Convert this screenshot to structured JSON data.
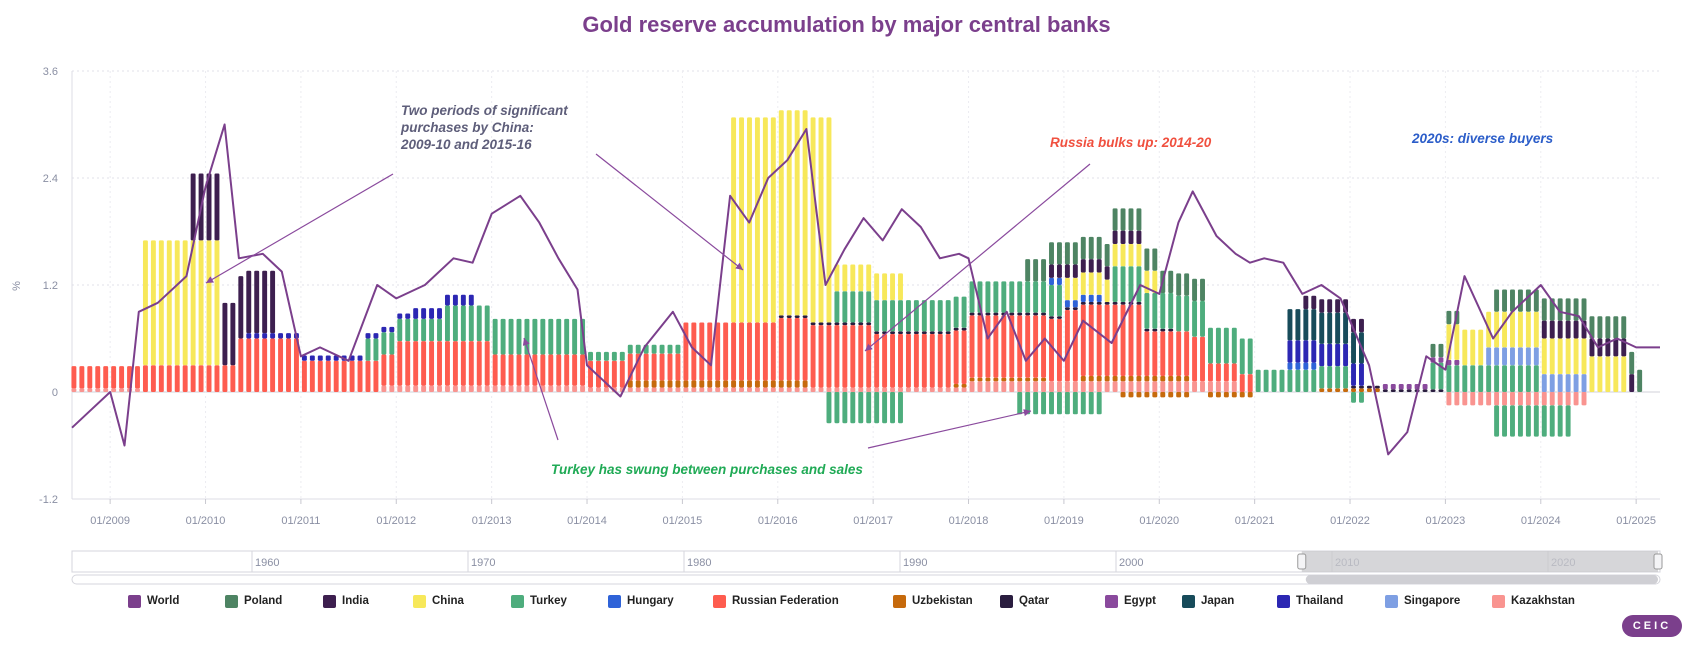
{
  "chart_data": {
    "type": "bar",
    "title": "Gold reserve accumulation by major central banks",
    "ylabel": "%",
    "xlabel": "",
    "ylim": [
      -1.2,
      3.6
    ],
    "yticks": [
      "3.6",
      "2.4",
      "1.2",
      "0",
      "-1.2"
    ],
    "ytick_values": [
      3.6,
      2.4,
      1.2,
      0,
      -1.2
    ],
    "xlim": [
      2008.6,
      2025.25
    ],
    "xticks": [
      {
        "label": "01/2009",
        "value": 2009
      },
      {
        "label": "01/2010",
        "value": 2010
      },
      {
        "label": "01/2011",
        "value": 2011
      },
      {
        "label": "01/2012",
        "value": 2012
      },
      {
        "label": "01/2013",
        "value": 2013
      },
      {
        "label": "01/2014",
        "value": 2014
      },
      {
        "label": "01/2015",
        "value": 2015
      },
      {
        "label": "01/2016",
        "value": 2016
      },
      {
        "label": "01/2017",
        "value": 2017
      },
      {
        "label": "01/2018",
        "value": 2018
      },
      {
        "label": "01/2019",
        "value": 2019
      },
      {
        "label": "01/2020",
        "value": 2020
      },
      {
        "label": "01/2021",
        "value": 2021
      },
      {
        "label": "01/2022",
        "value": 2022
      },
      {
        "label": "01/2023",
        "value": 2023
      },
      {
        "label": "01/2024",
        "value": 2024
      },
      {
        "label": "01/2025",
        "value": 2025
      }
    ],
    "stack_order": [
      "Kazakhstan",
      "Uzbekistan",
      "Russian Federation",
      "Qatar",
      "Turkey",
      "Hungary",
      "Singapore",
      "Thailand",
      "Japan",
      "Egypt",
      "China",
      "India",
      "Poland"
    ],
    "series": [
      {
        "name": "World",
        "type": "line",
        "color": "#7b3f8c",
        "points": [
          [
            2008.6,
            -0.4
          ],
          [
            2008.8,
            -0.2
          ],
          [
            2009.0,
            0.0
          ],
          [
            2009.15,
            -0.6
          ],
          [
            2009.3,
            0.9
          ],
          [
            2009.5,
            1.0
          ],
          [
            2009.8,
            1.3
          ],
          [
            2010.0,
            2.3
          ],
          [
            2010.2,
            3.0
          ],
          [
            2010.35,
            1.5
          ],
          [
            2010.6,
            1.55
          ],
          [
            2010.8,
            1.35
          ],
          [
            2011.0,
            0.4
          ],
          [
            2011.2,
            0.5
          ],
          [
            2011.5,
            0.35
          ],
          [
            2011.8,
            1.2
          ],
          [
            2012.0,
            1.05
          ],
          [
            2012.3,
            1.2
          ],
          [
            2012.6,
            1.5
          ],
          [
            2012.8,
            1.45
          ],
          [
            2013.0,
            2.0
          ],
          [
            2013.3,
            2.2
          ],
          [
            2013.5,
            1.9
          ],
          [
            2013.7,
            1.5
          ],
          [
            2013.9,
            1.15
          ],
          [
            2014.0,
            0.3
          ],
          [
            2014.2,
            0.1
          ],
          [
            2014.35,
            -0.05
          ],
          [
            2014.6,
            0.5
          ],
          [
            2014.9,
            0.9
          ],
          [
            2015.1,
            0.5
          ],
          [
            2015.3,
            0.3
          ],
          [
            2015.5,
            2.2
          ],
          [
            2015.7,
            1.9
          ],
          [
            2015.9,
            2.4
          ],
          [
            2016.1,
            2.6
          ],
          [
            2016.3,
            2.95
          ],
          [
            2016.5,
            1.2
          ],
          [
            2016.7,
            1.6
          ],
          [
            2016.9,
            1.95
          ],
          [
            2017.1,
            1.7
          ],
          [
            2017.3,
            2.05
          ],
          [
            2017.5,
            1.85
          ],
          [
            2017.7,
            1.5
          ],
          [
            2017.9,
            1.55
          ],
          [
            2018.0,
            1.5
          ],
          [
            2018.2,
            0.6
          ],
          [
            2018.4,
            0.9
          ],
          [
            2018.6,
            0.35
          ],
          [
            2018.8,
            0.6
          ],
          [
            2019.0,
            0.35
          ],
          [
            2019.2,
            0.8
          ],
          [
            2019.5,
            0.55
          ],
          [
            2019.8,
            1.2
          ],
          [
            2020.0,
            1.1
          ],
          [
            2020.2,
            1.9
          ],
          [
            2020.35,
            2.25
          ],
          [
            2020.6,
            1.75
          ],
          [
            2020.8,
            1.55
          ],
          [
            2020.95,
            1.45
          ],
          [
            2021.1,
            1.5
          ],
          [
            2021.3,
            1.45
          ],
          [
            2021.5,
            1.1
          ],
          [
            2021.7,
            1.2
          ],
          [
            2021.9,
            1.05
          ],
          [
            2022.0,
            0.8
          ],
          [
            2022.2,
            0.3
          ],
          [
            2022.4,
            -0.7
          ],
          [
            2022.6,
            -0.45
          ],
          [
            2022.8,
            0.4
          ],
          [
            2023.0,
            0.25
          ],
          [
            2023.2,
            1.3
          ],
          [
            2023.5,
            0.6
          ],
          [
            2023.7,
            0.9
          ],
          [
            2024.0,
            1.2
          ],
          [
            2024.2,
            0.9
          ],
          [
            2024.4,
            0.85
          ],
          [
            2024.6,
            0.5
          ],
          [
            2024.8,
            0.6
          ],
          [
            2025.0,
            0.5
          ],
          [
            2025.25,
            0.5
          ]
        ]
      },
      {
        "name": "Poland",
        "color": "#4e8463",
        "segments": [
          [
            2018.6,
            2020.5,
            0.25
          ],
          [
            2022.8,
            2023.2,
            0.15
          ],
          [
            2023.5,
            2025.1,
            0.25
          ]
        ]
      },
      {
        "name": "India",
        "color": "#3d1f4f",
        "segments": [
          [
            2009.8,
            2010.15,
            0.75
          ],
          [
            2010.2,
            2010.75,
            0.7
          ],
          [
            2018.8,
            2019.8,
            0.15
          ],
          [
            2021.5,
            2022.2,
            0.15
          ],
          [
            2024.0,
            2025.0,
            0.2
          ]
        ]
      },
      {
        "name": "China",
        "color": "#f7e85a",
        "segments": [
          [
            2009.3,
            2010.2,
            1.4
          ],
          [
            2015.5,
            2016.6,
            2.3
          ],
          [
            2016.6,
            2017.3,
            0.3
          ],
          [
            2019.0,
            2020.0,
            0.25
          ],
          [
            2023.0,
            2024.9,
            0.4
          ]
        ]
      },
      {
        "name": "Turkey",
        "color": "#4ead7d",
        "segments": [
          [
            2011.7,
            2012.5,
            0.25
          ],
          [
            2012.5,
            2014.0,
            0.4
          ],
          [
            2014.0,
            2015.0,
            0.1
          ],
          [
            2016.6,
            2019.0,
            0.35
          ],
          [
            2019.5,
            2021.0,
            0.4
          ],
          [
            2021.0,
            2022.0,
            0.25
          ],
          [
            2022.8,
            2024.0,
            0.3
          ]
        ]
      },
      {
        "name": "Hungary",
        "color": "#2f63d8",
        "segments": [
          [
            2018.85,
            2019.4,
            0.08
          ],
          [
            2021.3,
            2021.7,
            0.08
          ]
        ]
      },
      {
        "name": "Russian Federation",
        "color": "#fe5c4f",
        "segments": [
          [
            2008.6,
            2009.3,
            0.25
          ],
          [
            2009.3,
            2010.3,
            0.3
          ],
          [
            2010.3,
            2011.0,
            0.6
          ],
          [
            2011.0,
            2012.0,
            0.35
          ],
          [
            2012.0,
            2013.0,
            0.5
          ],
          [
            2013.0,
            2014.0,
            0.35
          ],
          [
            2014.0,
            2015.0,
            0.3
          ],
          [
            2015.0,
            2016.0,
            0.65
          ],
          [
            2016.0,
            2017.0,
            0.7
          ],
          [
            2017.0,
            2018.0,
            0.6
          ],
          [
            2018.0,
            2019.0,
            0.7
          ],
          [
            2019.0,
            2019.8,
            0.8
          ],
          [
            2019.8,
            2020.5,
            0.5
          ],
          [
            2020.5,
            2021.0,
            0.2
          ]
        ]
      },
      {
        "name": "Uzbekistan",
        "color": "#c66a0c",
        "segments": [
          [
            2014.4,
            2016.3,
            0.08
          ],
          [
            2017.8,
            2018.8,
            0.04
          ],
          [
            2019.2,
            2020.3,
            0.06
          ],
          [
            2021.7,
            2022.3,
            0.04
          ]
        ]
      },
      {
        "name": "Qatar",
        "color": "#2a1d3f",
        "segments": [
          [
            2016.0,
            2020.2,
            0.03
          ],
          [
            2022.0,
            2023.0,
            0.03
          ]
        ]
      },
      {
        "name": "Egypt",
        "color": "#8a4a9d",
        "segments": [
          [
            2022.3,
            2023.2,
            0.06
          ]
        ]
      },
      {
        "name": "Japan",
        "color": "#174b5a",
        "segments": [
          [
            2021.3,
            2022.2,
            0.35
          ]
        ]
      },
      {
        "name": "Thailand",
        "color": "#2c27b3",
        "segments": [
          [
            2010.4,
            2012.2,
            0.06
          ],
          [
            2012.2,
            2012.8,
            0.12
          ],
          [
            2021.3,
            2022.2,
            0.25
          ]
        ]
      },
      {
        "name": "Singapore",
        "color": "#7e9fe3",
        "segments": [
          [
            2023.4,
            2024.5,
            0.2
          ]
        ]
      },
      {
        "name": "Kazakhstan",
        "color": "#f99490",
        "segments": [
          [
            2008.6,
            2009.3,
            0.04
          ],
          [
            2011.8,
            2014.0,
            0.07
          ],
          [
            2014.0,
            2018.0,
            0.05
          ],
          [
            2018.0,
            2020.8,
            0.12
          ],
          [
            2023.0,
            2024.5,
            -0.15
          ]
        ]
      }
    ],
    "negatives": [
      {
        "name": "Turkey",
        "color": "#4ead7d",
        "segments": [
          [
            2016.5,
            2017.3,
            -0.35
          ],
          [
            2018.5,
            2019.4,
            -0.25
          ],
          [
            2022.0,
            2022.2,
            -0.12
          ],
          [
            2023.5,
            2024.3,
            -0.35
          ]
        ]
      },
      {
        "name": "Uzbekistan",
        "color": "#c66a0c",
        "segments": [
          [
            2019.6,
            2020.3,
            -0.06
          ],
          [
            2020.5,
            2021.0,
            -0.06
          ]
        ]
      }
    ],
    "annotations": [
      {
        "text": "Two periods of significant purchases by China:",
        "line2": "2009-10 and 2015-16",
        "color": "#5e5e7a"
      },
      {
        "text": "Russia bulks up: 2014-20",
        "color": "#f0503f"
      },
      {
        "text": "2020s: diverse buyers",
        "color": "#2b5dc9"
      },
      {
        "text": "Turkey has swung between purchases and sales",
        "color": "#1faa55"
      }
    ]
  },
  "navigator": {
    "labels": [
      "1960",
      "1970",
      "1980",
      "1990",
      "2000",
      "2010",
      "2020"
    ]
  },
  "legend": [
    {
      "name": "World",
      "color": "#7b3f8c"
    },
    {
      "name": "Poland",
      "color": "#4e8463"
    },
    {
      "name": "India",
      "color": "#3d1f4f"
    },
    {
      "name": "China",
      "color": "#f7e85a"
    },
    {
      "name": "Turkey",
      "color": "#4ead7d"
    },
    {
      "name": "Hungary",
      "color": "#2f63d8"
    },
    {
      "name": "Russian Federation",
      "color": "#fe5c4f"
    },
    {
      "name": "Uzbekistan",
      "color": "#c66a0c"
    },
    {
      "name": "Qatar",
      "color": "#2a1d3f"
    },
    {
      "name": "Egypt",
      "color": "#8a4a9d"
    },
    {
      "name": "Japan",
      "color": "#174b5a"
    },
    {
      "name": "Thailand",
      "color": "#2c27b3"
    },
    {
      "name": "Singapore",
      "color": "#7e9fe3"
    },
    {
      "name": "Kazakhstan",
      "color": "#f99490"
    }
  ],
  "logo": {
    "text": "CEIC"
  }
}
